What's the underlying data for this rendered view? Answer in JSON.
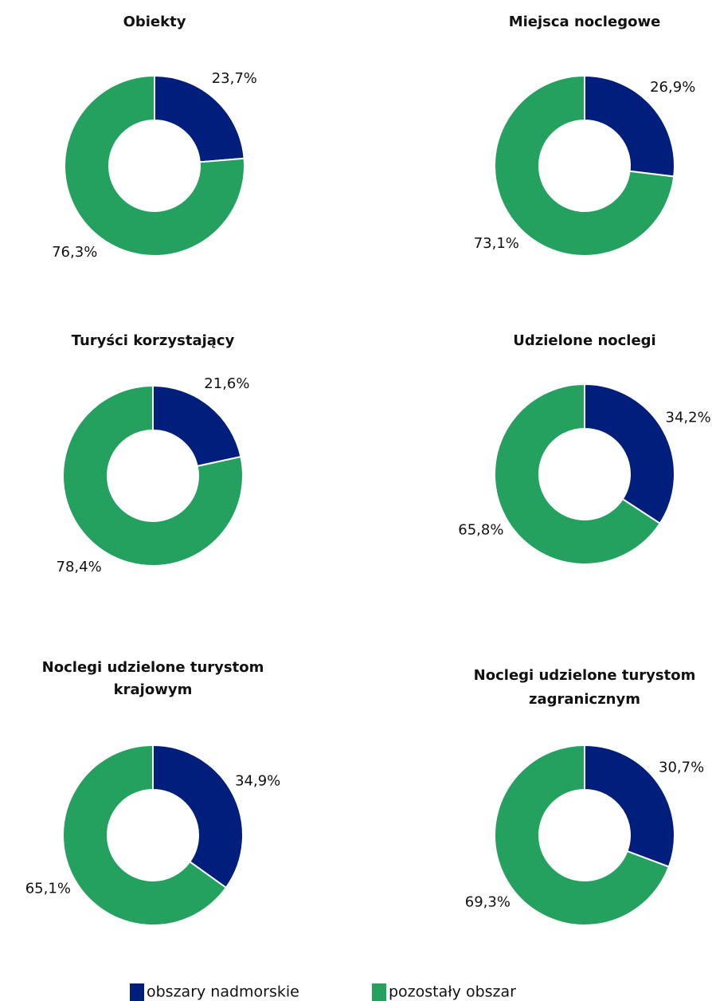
{
  "legend": {
    "series": [
      {
        "name": "obszary nadmorskie",
        "color": "#001f7c"
      },
      {
        "name": "pozostały obszar",
        "color": "#24a05f"
      }
    ]
  },
  "chart_data": [
    {
      "type": "pie",
      "title": [
        "Obiekty"
      ],
      "values": [
        23.7,
        76.3
      ],
      "value_labels": [
        "23,7%",
        "76,3%"
      ]
    },
    {
      "type": "pie",
      "title": [
        "Miejsca noclegowe"
      ],
      "values": [
        26.9,
        73.1
      ],
      "value_labels": [
        "26,9%",
        "73,1%"
      ]
    },
    {
      "type": "pie",
      "title": [
        "Turyści korzystający"
      ],
      "values": [
        21.6,
        78.4
      ],
      "value_labels": [
        "21,6%",
        "78,4%"
      ]
    },
    {
      "type": "pie",
      "title": [
        "Udzielone noclegi"
      ],
      "values": [
        34.2,
        65.8
      ],
      "value_labels": [
        "34,2%",
        "65,8%"
      ]
    },
    {
      "type": "pie",
      "title": [
        "Noclegi udzielone turystom",
        "krajowym"
      ],
      "values": [
        34.9,
        65.1
      ],
      "value_labels": [
        "34,9%",
        "65,1%"
      ]
    },
    {
      "type": "pie",
      "title": [
        "Noclegi udzielone turystom",
        "zagranicznym"
      ],
      "values": [
        30.7,
        69.3
      ],
      "value_labels": [
        "30,7%",
        "69,3%"
      ]
    }
  ]
}
